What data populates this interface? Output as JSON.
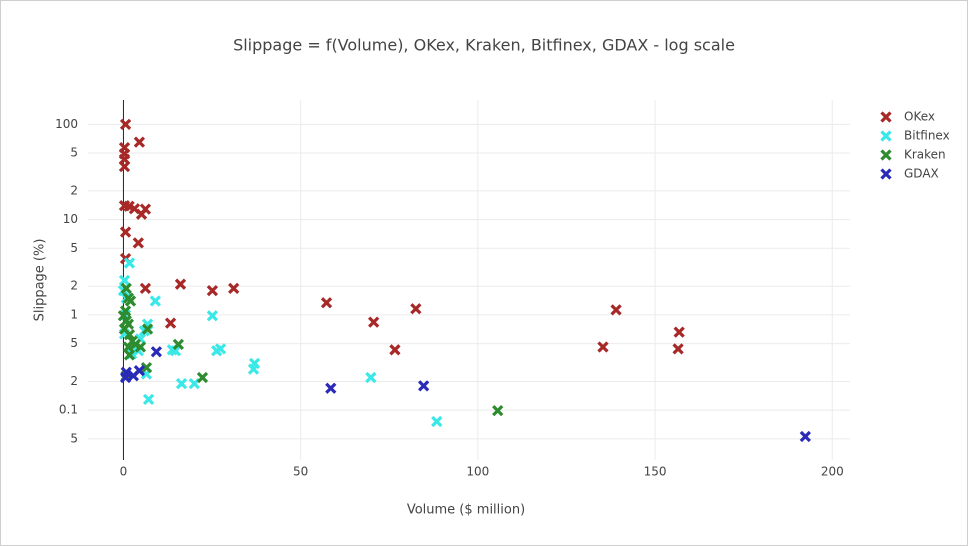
{
  "chart_data": {
    "type": "scatter",
    "title": "Slippage = f(Volume), OKex, Kraken, Bitfinex, GDAX - log scale",
    "x_label": "Volume ($ million)",
    "y_label": "Slippage (%)",
    "xlim": [
      -10,
      205
    ],
    "xticks": [
      0,
      50,
      100,
      150,
      200
    ],
    "ylim": [
      0.03,
      180
    ],
    "y_log": true,
    "yticks": [
      100,
      {
        "value": 50,
        "label": "5"
      },
      {
        "value": 20,
        "label": "2"
      },
      10,
      5,
      2,
      1,
      {
        "value": 0.5,
        "label": "5"
      },
      {
        "value": 0.2,
        "label": "2"
      },
      0.1,
      {
        "value": 0.05,
        "label": "5"
      }
    ],
    "grid": true,
    "legend": "right",
    "series": [
      {
        "name": "OKex",
        "color": "#a82828",
        "x": [
          0.6,
          0.3,
          0.3,
          0.3,
          0.3,
          4.5,
          0.3,
          1.6,
          3.1,
          5.1,
          6.2,
          0.6,
          4.2,
          0.6,
          6.2,
          16.1,
          25.1,
          31.1,
          57.3,
          82.5,
          139,
          13.3,
          70.6,
          76.6,
          135.3,
          156.8,
          156.5
        ],
        "values": [
          100,
          57,
          49,
          43,
          36,
          65,
          14,
          13.8,
          13,
          11.4,
          12.9,
          7.4,
          5.7,
          3.9,
          1.9,
          2.1,
          1.8,
          1.9,
          1.34,
          1.16,
          1.13,
          0.82,
          0.84,
          0.43,
          0.46,
          0.66,
          0.44
        ]
      },
      {
        "name": "Bitfinex",
        "color": "#3ae8e8",
        "x": [
          1.7,
          0.3,
          0,
          0.8,
          9,
          0.6,
          25.1,
          6.8,
          0.3,
          4.8,
          5.9,
          13.8,
          14.7,
          26.3,
          27.4,
          37,
          36.7,
          4.2,
          16.4,
          20,
          6.5,
          7.1,
          69.8,
          88.4,
          2.3
        ],
        "values": [
          3.5,
          2.3,
          1.8,
          1.5,
          1.4,
          1.0,
          0.98,
          0.8,
          0.63,
          0.56,
          0.68,
          0.43,
          0.42,
          0.42,
          0.44,
          0.31,
          0.27,
          0.42,
          0.19,
          0.19,
          0.24,
          0.13,
          0.22,
          0.076,
          0.39
        ]
      },
      {
        "name": "Kraken",
        "color": "#2e8b2e",
        "x": [
          0.8,
          1.4,
          2,
          0.6,
          0,
          0.8,
          1.4,
          0.3,
          1.7,
          2.5,
          1.4,
          3.4,
          4.8,
          6.8,
          15.5,
          1.7,
          6.5,
          22.3,
          0.8,
          105.6
        ],
        "values": [
          1.9,
          1.5,
          1.4,
          1.1,
          0.98,
          0.87,
          0.8,
          0.71,
          0.62,
          0.53,
          0.46,
          0.49,
          0.46,
          0.71,
          0.49,
          0.38,
          0.28,
          0.22,
          0.23,
          0.099
        ]
      },
      {
        "name": "GDAX",
        "color": "#2a2ab8",
        "x": [
          0.8,
          2.8,
          4.5,
          9.3,
          58.5,
          84.7,
          192.4,
          0.6
        ],
        "values": [
          0.25,
          0.23,
          0.26,
          0.41,
          0.17,
          0.18,
          0.053,
          0.22
        ]
      }
    ]
  }
}
